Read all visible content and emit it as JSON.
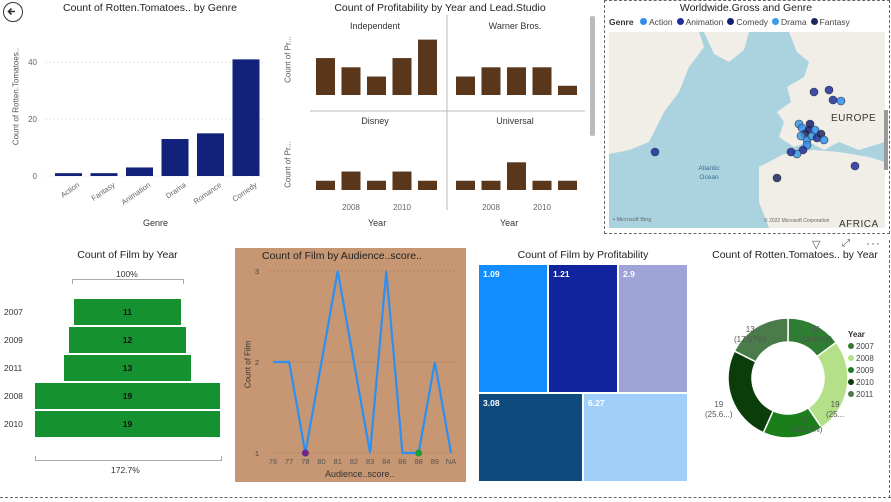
{
  "nav": {
    "back_icon": "back-arrow-icon"
  },
  "genre_chart": {
    "title": "Count of Rotten.Tomatoes.. by Genre",
    "ylabel": "Count of Rotten.Tomatoes..",
    "xlabel": "Genre",
    "yticks": [
      "40",
      "20",
      "0"
    ]
  },
  "prof_chart": {
    "title": "Count of Profitability by Year and Lead.Studio",
    "ylabel": "Count of Pr...",
    "xlabel": "Year",
    "xticks": [
      "2008",
      "2010"
    ],
    "panels": [
      "Independent",
      "Warner Bros.",
      "Disney",
      "Universal"
    ]
  },
  "map": {
    "title": "Worldwide.Gross and Genre",
    "legend_title": "Genre",
    "legend": [
      {
        "name": "Action",
        "color": "#2f8ff0"
      },
      {
        "name": "Animation",
        "color": "#1f2f9c"
      },
      {
        "name": "Comedy",
        "color": "#15206e"
      },
      {
        "name": "Drama",
        "color": "#3a9be8"
      },
      {
        "name": "Fantasy",
        "color": "#1c2a5e"
      }
    ],
    "labels": {
      "europe": "EUROPE",
      "atlantic": "Atlantic\nOcean",
      "africa": "AFRICA",
      "bing": "Microsoft Bing",
      "copyright": "© 2022 Microsoft Corporation"
    }
  },
  "funnel": {
    "title": "Count of Film by Year",
    "top_pct": "100%",
    "bottom_pct": "172.7%",
    "rows": [
      {
        "year": "2007",
        "value": "11"
      },
      {
        "year": "2009",
        "value": "12"
      },
      {
        "year": "2011",
        "value": "13"
      },
      {
        "year": "2008",
        "value": "19"
      },
      {
        "year": "2010",
        "value": "19"
      }
    ]
  },
  "line_chart": {
    "title": "Count of Film by Audience..score..",
    "ylabel": "Count of Film",
    "xlabel": "Audience..score..",
    "yticks": [
      "3",
      "2",
      "1"
    ]
  },
  "treemap": {
    "title": "Count of Film by Profitability",
    "cells": [
      "1.09",
      "1.21",
      "2.9",
      "3.08",
      "6.27"
    ]
  },
  "donut": {
    "title": "Count of Rotten.Tomatoes.. by Year",
    "legend_title": "Year",
    "labels": {
      "top_left": "13\n(17.57%)",
      "top_right": "11\n(14.86%)",
      "right": "19\n(25...",
      "left": "19\n(25.6...)",
      "bottom": "12\n(16.22%)"
    },
    "legend": [
      {
        "year": "2007",
        "color": "#2e7d32"
      },
      {
        "year": "2008",
        "color": "#b4e089"
      },
      {
        "year": "2009",
        "color": "#1a7f1a"
      },
      {
        "year": "2010",
        "color": "#0b3d0b"
      },
      {
        "year": "2011",
        "color": "#4b7a4b"
      }
    ]
  },
  "chart_data": [
    {
      "type": "bar",
      "title": "Count of Rotten.Tomatoes.. by Genre",
      "xlabel": "Genre",
      "ylabel": "Count of Rotten.Tomatoes..",
      "categories": [
        "Action",
        "Fantasy",
        "Animation",
        "Drama",
        "Romance",
        "Comedy"
      ],
      "values": [
        1,
        1,
        3,
        13,
        15,
        41
      ],
      "ylim": [
        0,
        45
      ],
      "color": "#12217a"
    },
    {
      "type": "bar",
      "title": "Count of Profitability by Year and Lead.Studio",
      "xlabel": "Year",
      "ylabel": "Count of Pr...",
      "categories": [
        "2007",
        "2008",
        "2009",
        "2010",
        "2011"
      ],
      "series": [
        {
          "name": "Independent",
          "values": [
            4,
            3,
            2,
            4,
            6
          ]
        },
        {
          "name": "Warner Bros.",
          "values": [
            2,
            3,
            3,
            3,
            1
          ]
        },
        {
          "name": "Disney",
          "values": [
            1,
            2,
            1,
            2,
            1
          ]
        },
        {
          "name": "Universal",
          "values": [
            1,
            1,
            3,
            1,
            1
          ]
        }
      ],
      "ylim": [
        0,
        6.5
      ],
      "color": "#5a361a"
    },
    {
      "type": "bar",
      "title": "Count of Film by Year",
      "categories": [
        "2007",
        "2009",
        "2011",
        "2008",
        "2010"
      ],
      "values": [
        11,
        12,
        13,
        19,
        19
      ]
    },
    {
      "type": "line",
      "title": "Count of Film by Audience..score..",
      "xlabel": "Audience..score..",
      "ylabel": "Count of Film",
      "categories": [
        "76",
        "77",
        "78",
        "80",
        "81",
        "82",
        "83",
        "84",
        "86",
        "88",
        "89",
        "NA"
      ],
      "values": [
        2,
        2,
        1,
        2,
        3,
        2,
        1,
        3,
        1,
        1,
        2,
        1
      ],
      "ylim": [
        1,
        3
      ],
      "color": "#2f8ff0"
    },
    {
      "type": "heatmap",
      "title": "Count of Film by Profitability",
      "categories": [
        "1.09",
        "1.21",
        "2.9",
        "3.08",
        "6.27"
      ]
    },
    {
      "type": "pie",
      "title": "Count of Rotten.Tomatoes.. by Year",
      "categories": [
        "2007",
        "2008",
        "2009",
        "2010",
        "2011"
      ],
      "values": [
        11,
        19,
        12,
        19,
        13
      ],
      "labels_pct": [
        "14.86%",
        "25.68%",
        "16.22%",
        "25.68%",
        "17.57%"
      ]
    }
  ]
}
